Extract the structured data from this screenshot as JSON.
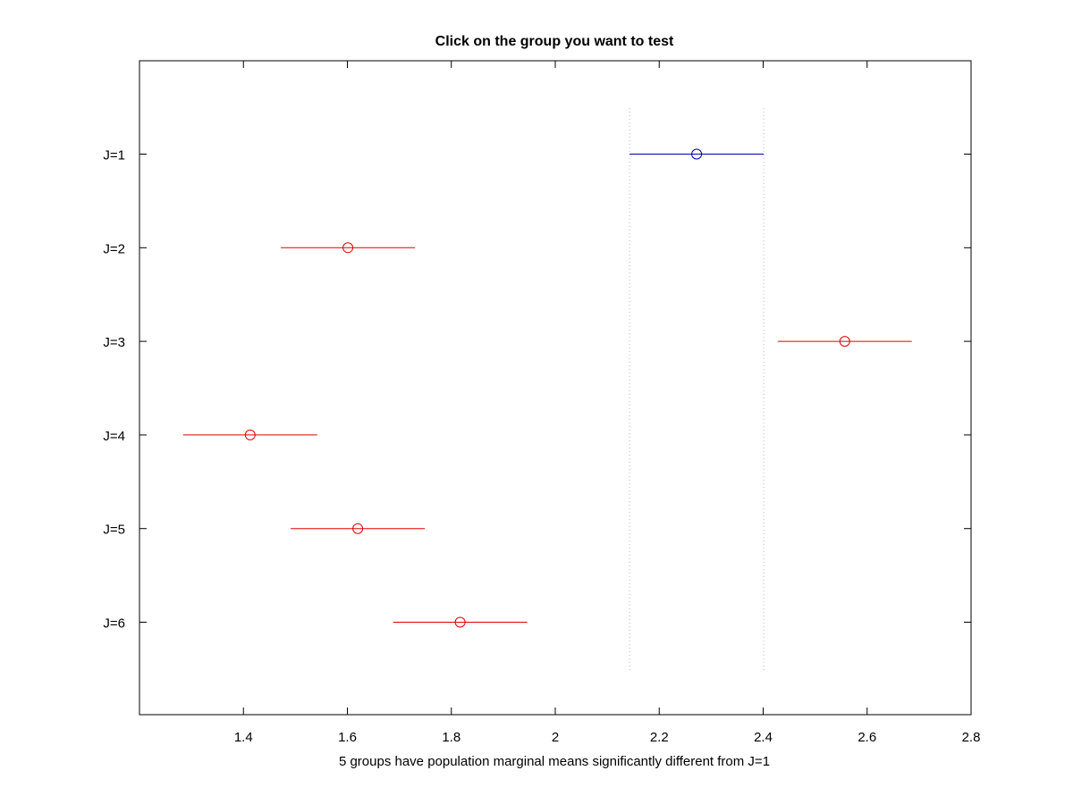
{
  "chart_data": {
    "type": "scatter",
    "title": "Click on the group you want to test",
    "xlabel": "5 groups have population marginal means significantly different from J=1",
    "ylabel": "",
    "xlim": [
      1.2,
      2.8
    ],
    "x_ticks": [
      "1.4",
      "1.6",
      "1.8",
      "2",
      "2.2",
      "2.4",
      "2.6",
      "2.8"
    ],
    "grid": false,
    "groups": [
      {
        "label": "J=1",
        "mean": 2.272,
        "lower": 2.143,
        "upper": 2.401,
        "selected": true
      },
      {
        "label": "J=2",
        "mean": 1.601,
        "lower": 1.472,
        "upper": 1.73,
        "selected": false
      },
      {
        "label": "J=3",
        "mean": 2.557,
        "lower": 2.428,
        "upper": 2.686,
        "selected": false
      },
      {
        "label": "J=4",
        "mean": 1.413,
        "lower": 1.284,
        "upper": 1.542,
        "selected": false
      },
      {
        "label": "J=5",
        "mean": 1.62,
        "lower": 1.491,
        "upper": 1.749,
        "selected": false
      },
      {
        "label": "J=6",
        "mean": 1.817,
        "lower": 1.688,
        "upper": 1.946,
        "selected": false
      }
    ],
    "reference_lines": [
      2.143,
      2.401
    ],
    "colors": {
      "selected": "#0000b0",
      "different": "#e00000",
      "reference_line": "#bbbbbb",
      "axis": "#000000"
    }
  }
}
